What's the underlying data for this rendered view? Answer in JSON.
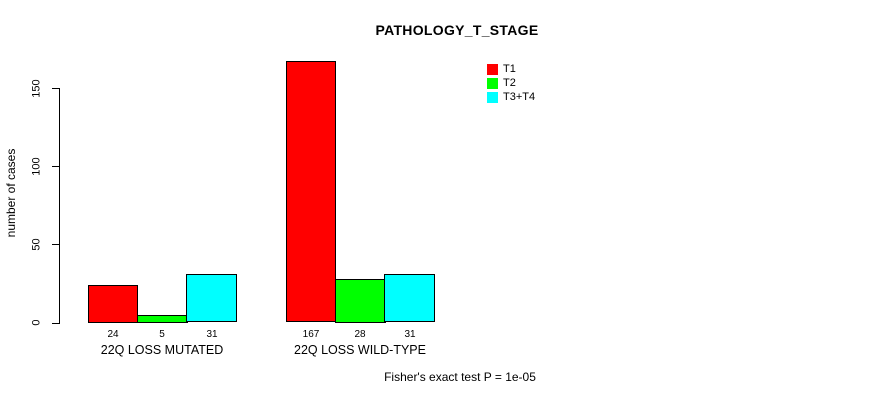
{
  "chart_data": {
    "type": "bar",
    "title": "PATHOLOGY_T_STAGE",
    "ylabel": "number of cases",
    "xlabel": "",
    "categories": [
      "22Q LOSS MUTATED",
      "22Q LOSS WILD-TYPE"
    ],
    "series": [
      {
        "name": "T1",
        "color": "#ff0000",
        "values": [
          24,
          167
        ]
      },
      {
        "name": "T2",
        "color": "#00ff00",
        "values": [
          5,
          28
        ]
      },
      {
        "name": "T3+T4",
        "color": "#00ffff",
        "values": [
          31,
          31
        ]
      }
    ],
    "yticks": [
      0,
      50,
      100,
      150
    ],
    "ylim": [
      0,
      175
    ],
    "grid": false,
    "legend_position": "top-right",
    "bar_value_labels": true,
    "annotation": "Fisher's exact test P = 1e-05"
  },
  "colors": {
    "t1": "#ff0000",
    "t2": "#00ff00",
    "t3_t4": "#00ffff",
    "axis": "#000000",
    "background": "#ffffff"
  }
}
